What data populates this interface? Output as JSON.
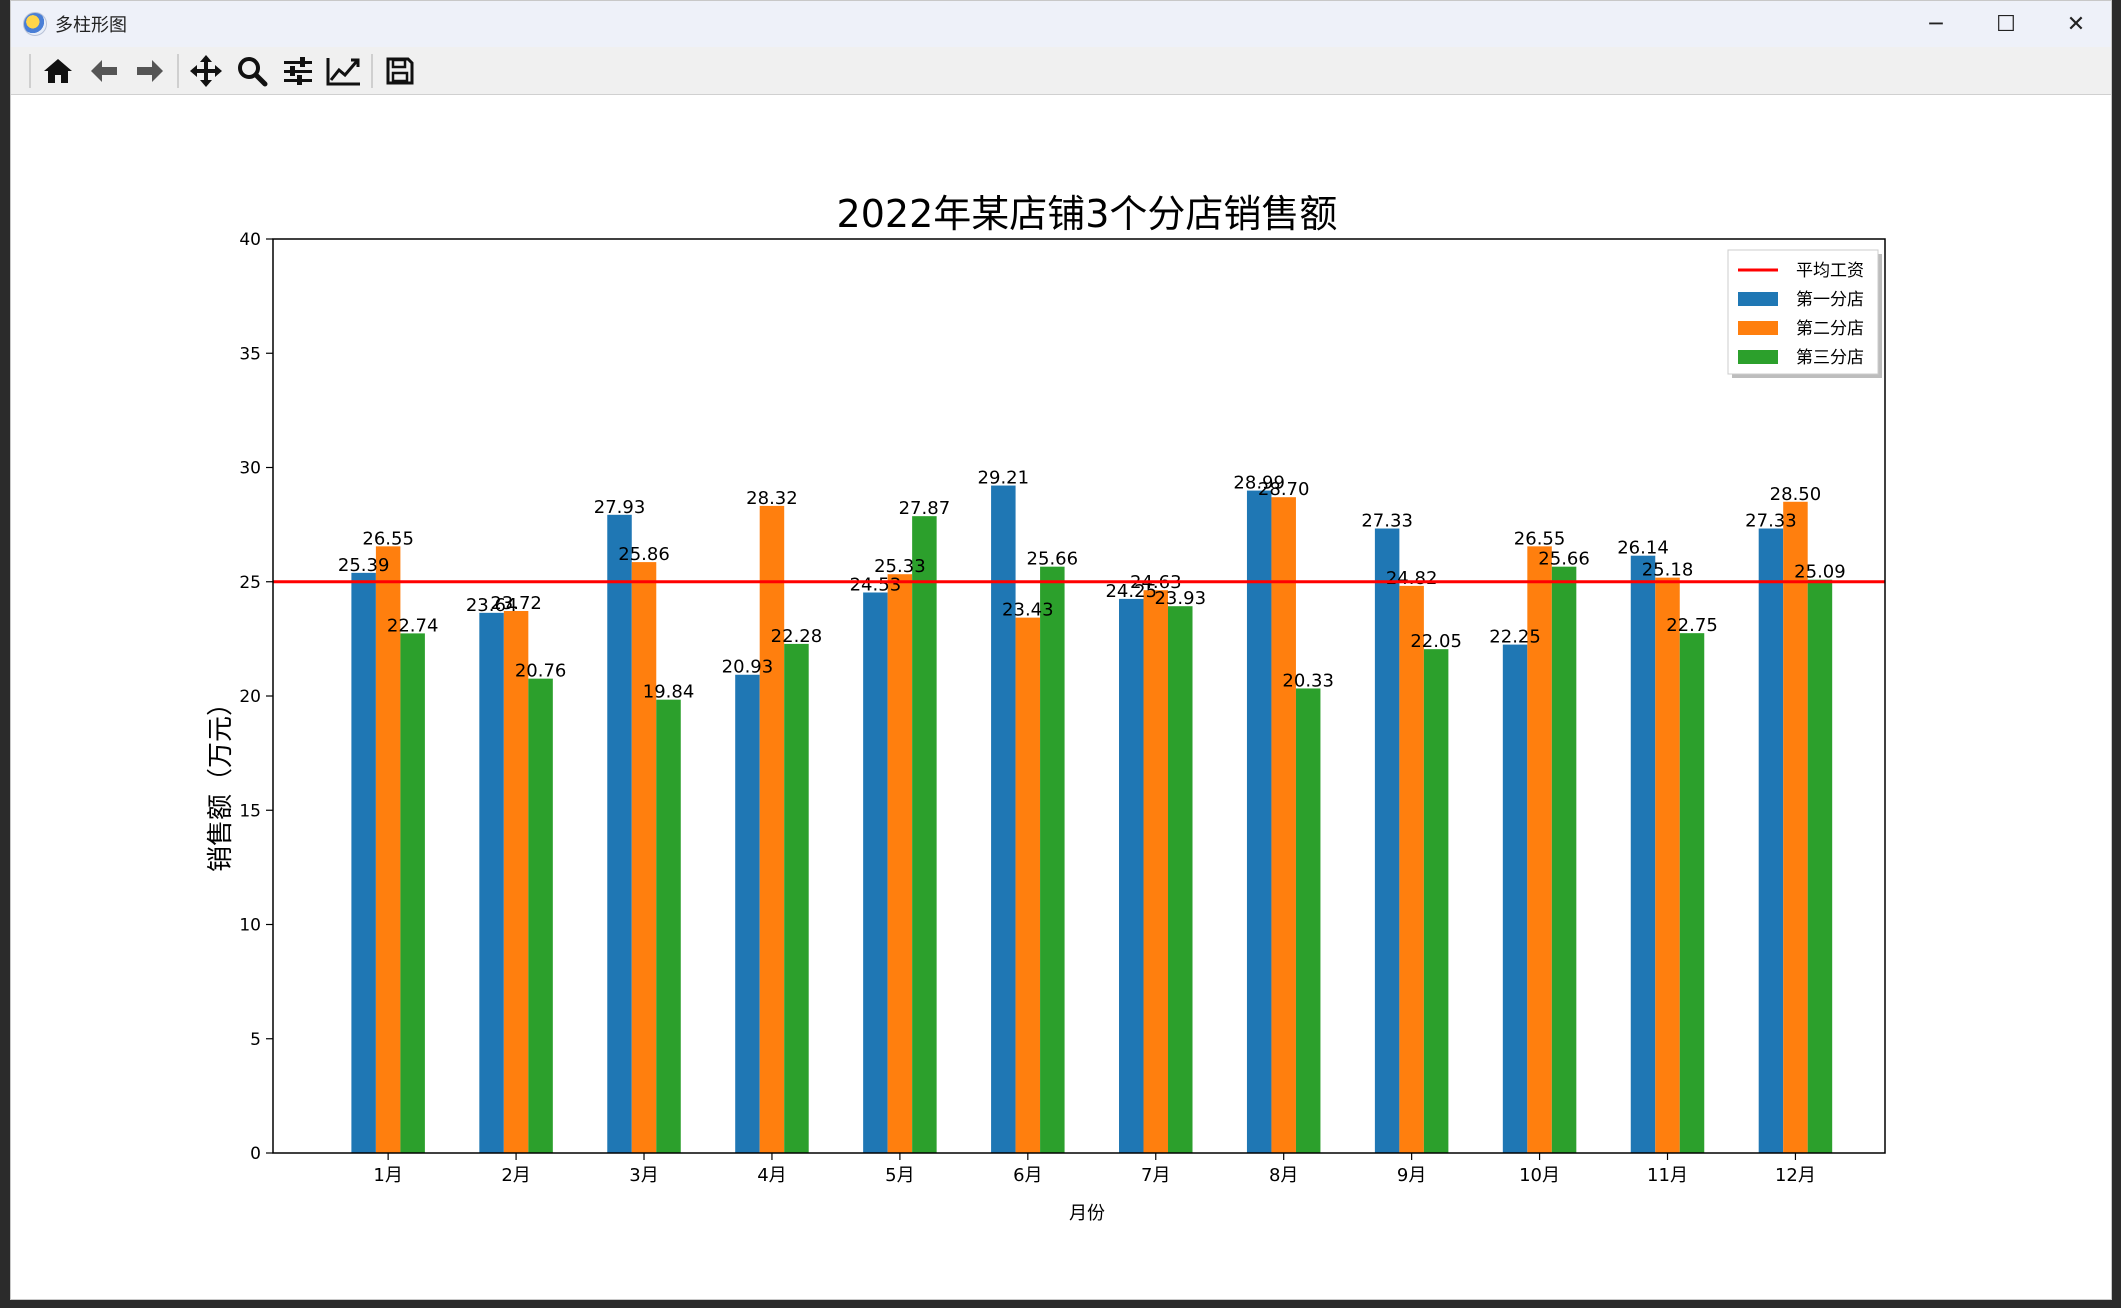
{
  "window": {
    "title": "多柱形图",
    "controls": {
      "minimize": "─",
      "maximize": "☐",
      "close": "✕"
    }
  },
  "toolbar": {
    "buttons": [
      {
        "name": "home-icon"
      },
      {
        "name": "back-arrow-icon"
      },
      {
        "name": "forward-arrow-icon"
      },
      {
        "name": "pan-move-icon"
      },
      {
        "name": "zoom-magnifier-icon"
      },
      {
        "name": "configure-subplots-icon"
      },
      {
        "name": "edit-axis-line-icon"
      },
      {
        "name": "save-floppy-icon"
      }
    ]
  },
  "chart_data": {
    "type": "bar",
    "title": "2022年某店铺3个分店销售额",
    "xlabel": "月份",
    "ylabel": "销售额（万元）",
    "ylim": [
      0,
      40
    ],
    "yticks": [
      0,
      5,
      10,
      15,
      20,
      25,
      30,
      35,
      40
    ],
    "categories": [
      "1月",
      "2月",
      "3月",
      "4月",
      "5月",
      "6月",
      "7月",
      "8月",
      "9月",
      "10月",
      "11月",
      "12月"
    ],
    "series": [
      {
        "name": "第一分店",
        "color": "#1f77b4",
        "values": [
          25.39,
          23.64,
          27.93,
          20.93,
          24.53,
          29.21,
          24.25,
          28.99,
          27.33,
          22.25,
          26.14,
          27.33
        ]
      },
      {
        "name": "第二分店",
        "color": "#ff7f0e",
        "values": [
          26.55,
          23.72,
          25.86,
          28.32,
          25.33,
          23.43,
          24.63,
          28.7,
          24.82,
          26.55,
          25.18,
          28.5
        ]
      },
      {
        "name": "第三分店",
        "color": "#2ca02c",
        "values": [
          22.74,
          20.76,
          19.84,
          22.28,
          27.87,
          25.66,
          23.93,
          20.33,
          22.05,
          25.66,
          22.75,
          25.09
        ]
      }
    ],
    "average_line": {
      "name": "平均工资",
      "value": 25,
      "color": "#ff0000"
    },
    "legend_position": "top-right",
    "grid": false
  }
}
